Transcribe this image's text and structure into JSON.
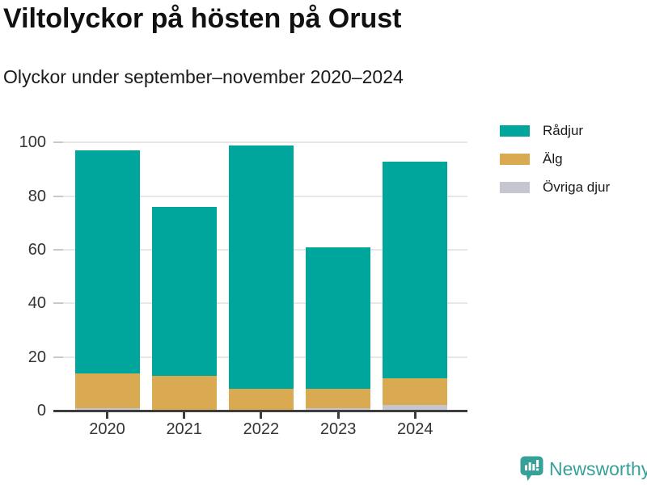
{
  "header": {
    "title": "Viltolyckor på hösten på Orust",
    "subtitle": "Olyckor under september–november 2020–2024"
  },
  "chart_data": {
    "type": "bar",
    "stacked": true,
    "title": "Viltolyckor på hösten på Orust",
    "subtitle": "Olyckor under september–november 2020–2024",
    "categories": [
      "2020",
      "2021",
      "2022",
      "2023",
      "2024"
    ],
    "series": [
      {
        "name": "Rådjur",
        "color": "#00a69b",
        "values": [
          83,
          63,
          91,
          53,
          81
        ]
      },
      {
        "name": "Älg",
        "color": "#d9aa52",
        "values": [
          13,
          13,
          8,
          7,
          10
        ]
      },
      {
        "name": "Övriga djur",
        "color": "#c6c6d0",
        "values": [
          1,
          0,
          0,
          1,
          2
        ]
      }
    ],
    "totals": [
      97,
      76,
      99,
      61,
      93
    ],
    "xlabel": "",
    "ylabel": "",
    "ylim": [
      0,
      100
    ],
    "yticks": [
      0,
      20,
      40,
      60,
      80,
      100
    ],
    "grid": "horizontal",
    "legend_position": "top-right",
    "colors": {
      "axis": "#3d3d3d",
      "gridline": "#e7e7e7",
      "grid_tick": "#c9c9c9",
      "text": "#333333"
    }
  },
  "footer": {
    "brand": "Newsworthy",
    "brand_color": "#37a098"
  }
}
